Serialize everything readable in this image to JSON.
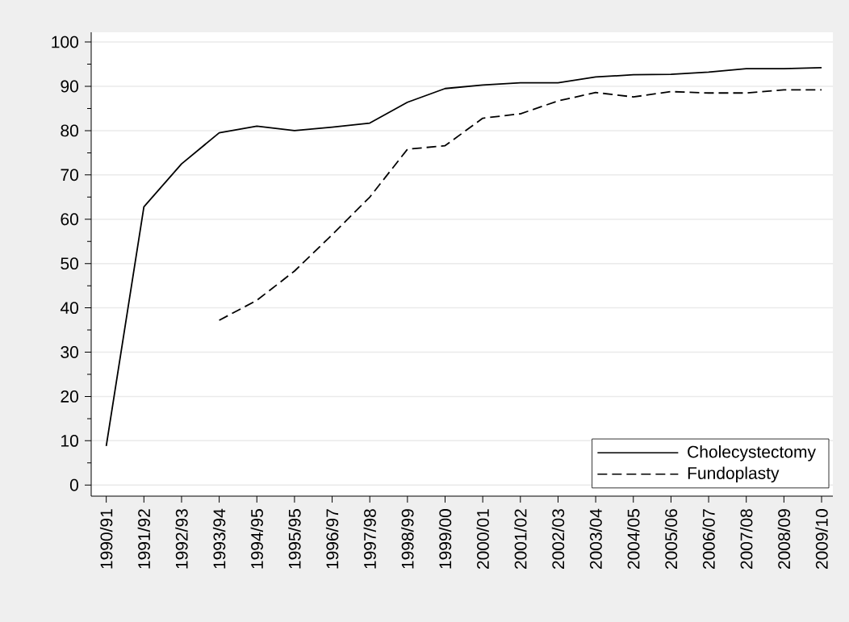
{
  "chart_data": {
    "type": "line",
    "categories": [
      "1990/91",
      "1991/92",
      "1992/93",
      "1993/94",
      "1994/95",
      "1995/95",
      "1996/97",
      "1997/98",
      "1998/99",
      "1999/00",
      "2000/01",
      "2001/02",
      "2002/03",
      "2003/04",
      "2004/05",
      "2005/06",
      "2006/07",
      "2007/08",
      "2008/09",
      "2009/10"
    ],
    "series": [
      {
        "name": "Cholecystectomy",
        "color": "#000000",
        "line_style": "solid",
        "values": [
          8.8,
          62.8,
          72.5,
          79.5,
          81,
          80,
          80.8,
          81.7,
          86.4,
          89.5,
          90.3,
          90.8,
          90.8,
          92.1,
          92.6,
          92.7,
          93.2,
          94,
          94,
          94.2
        ]
      },
      {
        "name": "Fundoplasty",
        "color": "#000000",
        "line_style": "dashed",
        "values": [
          null,
          null,
          null,
          37.2,
          41.7,
          48.3,
          56.5,
          65,
          75.8,
          76.6,
          82.8,
          83.8,
          86.7,
          88.6,
          87.6,
          88.8,
          88.5,
          88.5,
          89.2,
          89.2
        ]
      }
    ],
    "ylim": [
      -2.5,
      102.2
    ],
    "yticks": [
      0,
      {
        "value": 5,
        "label": null
      },
      10,
      {
        "value": 15,
        "label": null
      },
      20,
      {
        "value": 25,
        "label": null
      },
      30,
      {
        "value": 35,
        "label": null
      },
      40,
      {
        "value": 45,
        "label": null
      },
      50,
      {
        "value": 55,
        "label": null
      },
      60,
      {
        "value": 65,
        "label": null
      },
      70,
      {
        "value": 75,
        "label": null
      },
      80,
      {
        "value": 85,
        "label": null
      },
      90,
      {
        "value": 95,
        "label": null
      },
      100
    ],
    "grid": "y",
    "legend": "bottom right",
    "marker": "none"
  }
}
